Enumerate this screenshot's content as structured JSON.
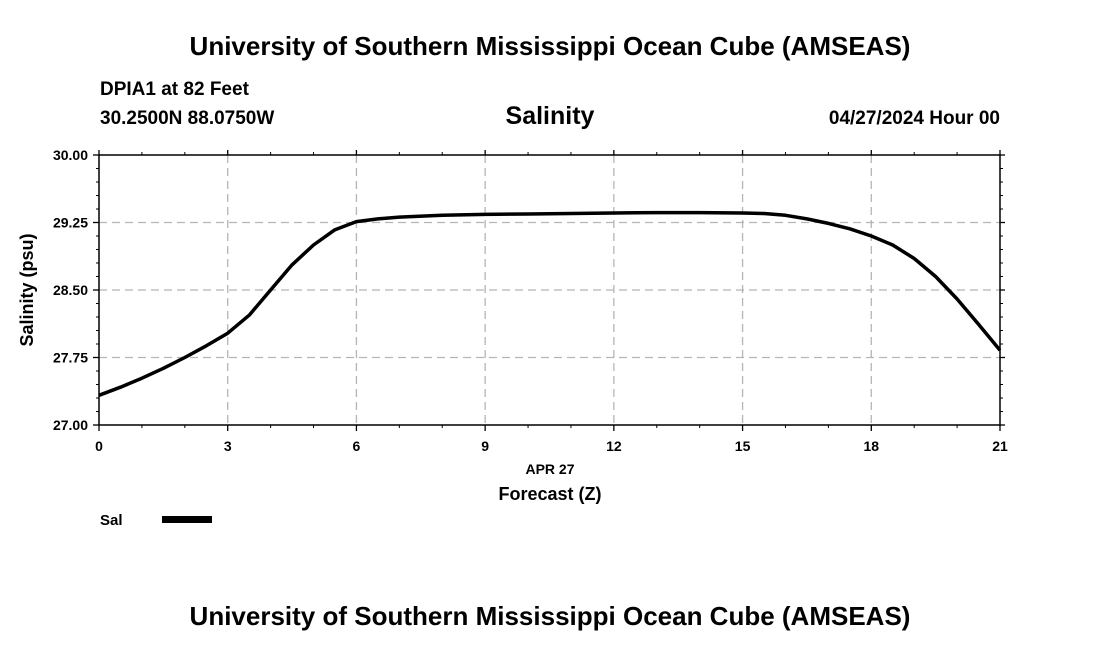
{
  "header": {
    "title": "University of Southern Mississippi Ocean Cube (AMSEAS)",
    "station": "DPIA1 at 82 Feet",
    "coords": "30.2500N  88.0750W",
    "variable": "Salinity",
    "datetime": "04/27/2024 Hour 00"
  },
  "footer": {
    "title": "University of Southern Mississippi Ocean Cube (AMSEAS)"
  },
  "chart_data": {
    "type": "line",
    "title": "Salinity",
    "xlabel": "Forecast (Z)",
    "date_label": "APR 27",
    "ylabel": "Salinity (psu)",
    "xlim": [
      0,
      21
    ],
    "ylim": [
      27.0,
      30.0
    ],
    "xticks": [
      0,
      3,
      6,
      9,
      12,
      15,
      18,
      21
    ],
    "xtick_labels": [
      "0",
      "3",
      "6",
      "9",
      "12",
      "15",
      "18",
      "21"
    ],
    "yticks": [
      27.0,
      27.75,
      28.5,
      29.25,
      30.0
    ],
    "ytick_labels": [
      "27.00",
      "27.75",
      "28.50",
      "29.25",
      "30.00"
    ],
    "grid": true,
    "series": [
      {
        "name": "Sal",
        "color": "#000000",
        "x": [
          0,
          0.5,
          1,
          1.5,
          2,
          2.5,
          3,
          3.5,
          4,
          4.5,
          5,
          5.5,
          6,
          6.5,
          7,
          8,
          9,
          10,
          11,
          12,
          13,
          14,
          15,
          15.5,
          16,
          16.5,
          17,
          17.5,
          18,
          18.5,
          19,
          19.5,
          20,
          20.5,
          21
        ],
        "y": [
          27.33,
          27.42,
          27.52,
          27.63,
          27.75,
          27.88,
          28.02,
          28.22,
          28.5,
          28.78,
          29.0,
          29.17,
          29.26,
          29.29,
          29.31,
          29.33,
          29.34,
          29.345,
          29.35,
          29.355,
          29.36,
          29.36,
          29.355,
          29.35,
          29.33,
          29.29,
          29.24,
          29.18,
          29.1,
          29.0,
          28.85,
          28.65,
          28.4,
          28.12,
          27.83
        ]
      }
    ],
    "legend": [
      {
        "label": "Sal",
        "color": "#000000"
      }
    ]
  }
}
